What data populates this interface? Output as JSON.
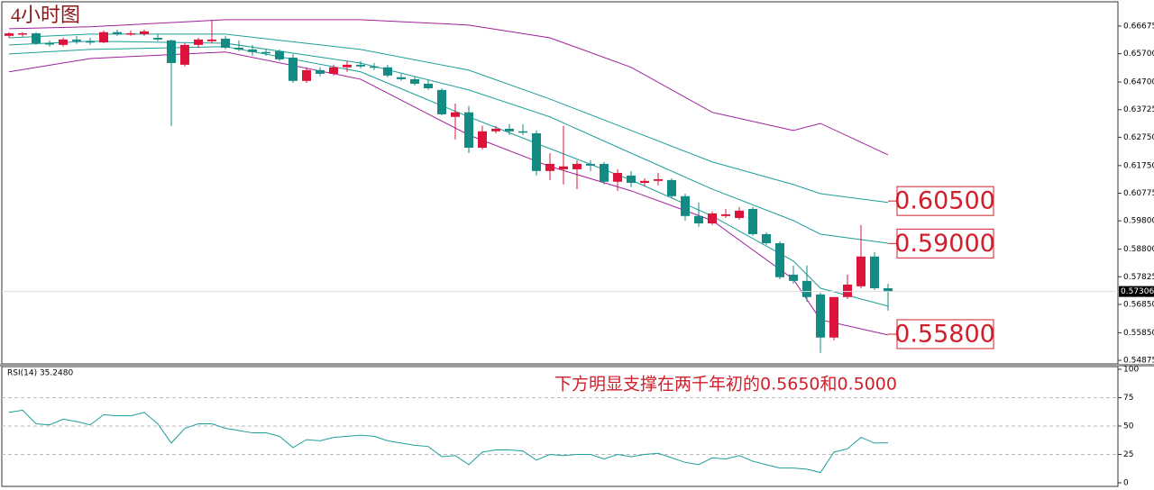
{
  "chart_data": [
    {
      "type": "candlestick",
      "title": "4小时图",
      "up_color": "#dc143c",
      "down_color": "#138a82",
      "ylim": [
        0.5475,
        0.675
      ],
      "yticks": [
        0.66675,
        {
          "value": 0.657,
          "label": "0.65700"
        },
        {
          "value": 0.647,
          "label": "0.64700"
        },
        0.63725,
        {
          "value": 0.6275,
          "label": "0.62750"
        },
        {
          "value": 0.6175,
          "label": "0.61750"
        },
        0.60775,
        {
          "value": 0.598,
          "label": "0.59800"
        },
        {
          "value": 0.588,
          "label": "0.58800"
        },
        0.57825,
        {
          "value": 0.5685,
          "label": "0.56850"
        },
        {
          "value": 0.5585,
          "label": "0.55850"
        },
        0.54875
      ],
      "ohlc": [
        [
          0.6633,
          0.6646,
          0.6626,
          0.6642
        ],
        [
          0.6639,
          0.6646,
          0.663,
          0.6642
        ],
        [
          0.6642,
          0.6646,
          0.6601,
          0.6607
        ],
        [
          0.6607,
          0.6617,
          0.6595,
          0.6604
        ],
        [
          0.6601,
          0.6626,
          0.6595,
          0.662
        ],
        [
          0.662,
          0.6633,
          0.6604,
          0.6614
        ],
        [
          0.6614,
          0.6626,
          0.6601,
          0.661
        ],
        [
          0.661,
          0.6652,
          0.6607,
          0.6646
        ],
        [
          0.6646,
          0.6655,
          0.6633,
          0.6639
        ],
        [
          0.6639,
          0.6652,
          0.6633,
          0.6642
        ],
        [
          0.6639,
          0.6655,
          0.6633,
          0.6649
        ],
        [
          0.6626,
          0.6639,
          0.6614,
          0.662
        ],
        [
          0.6617,
          0.662,
          0.6315,
          0.6537
        ],
        [
          0.6531,
          0.6607,
          0.6525,
          0.6601
        ],
        [
          0.6601,
          0.6626,
          0.6591,
          0.662
        ],
        [
          0.6614,
          0.669,
          0.6607,
          0.662
        ],
        [
          0.6623,
          0.6633,
          0.6585,
          0.6591
        ],
        [
          0.6591,
          0.6617,
          0.6579,
          0.6585
        ],
        [
          0.6585,
          0.6601,
          0.6563,
          0.6576
        ],
        [
          0.6576,
          0.6585,
          0.6563,
          0.6572
        ],
        [
          0.6579,
          0.6585,
          0.6544,
          0.655
        ],
        [
          0.6556,
          0.6569,
          0.6467,
          0.6474
        ],
        [
          0.6474,
          0.6522,
          0.6467,
          0.6512
        ],
        [
          0.6512,
          0.6522,
          0.649,
          0.6499
        ],
        [
          0.6499,
          0.6531,
          0.6493,
          0.6522
        ],
        [
          0.6522,
          0.6544,
          0.6506,
          0.6531
        ],
        [
          0.6531,
          0.6544,
          0.6518,
          0.6525
        ],
        [
          0.6525,
          0.6537,
          0.6512,
          0.6522
        ],
        [
          0.6522,
          0.6531,
          0.6487,
          0.6493
        ],
        [
          0.6487,
          0.6499,
          0.6474,
          0.648
        ],
        [
          0.648,
          0.649,
          0.6458,
          0.6464
        ],
        [
          0.6464,
          0.648,
          0.6442,
          0.6448
        ],
        [
          0.6442,
          0.6448,
          0.6353,
          0.6356
        ],
        [
          0.6347,
          0.6394,
          0.6267,
          0.6363
        ],
        [
          0.6363,
          0.6385,
          0.6219,
          0.6238
        ],
        [
          0.6238,
          0.6315,
          0.6232,
          0.6296
        ],
        [
          0.6296,
          0.6315,
          0.6289,
          0.6305
        ],
        [
          0.6305,
          0.6321,
          0.6283,
          0.6296
        ],
        [
          0.6296,
          0.6321,
          0.6283,
          0.6293
        ],
        [
          0.6289,
          0.6299,
          0.614,
          0.6156
        ],
        [
          0.6156,
          0.6219,
          0.6124,
          0.6181
        ],
        [
          0.6162,
          0.6315,
          0.6108,
          0.6172
        ],
        [
          0.6162,
          0.6194,
          0.6092,
          0.6181
        ],
        [
          0.6181,
          0.6194,
          0.6156,
          0.6175
        ],
        [
          0.6181,
          0.6188,
          0.6108,
          0.6118
        ],
        [
          0.6118,
          0.6162,
          0.6086,
          0.6149
        ],
        [
          0.614,
          0.6156,
          0.6099,
          0.6114
        ],
        [
          0.6114,
          0.613,
          0.6102,
          0.6121
        ],
        [
          0.6121,
          0.6149,
          0.6105,
          0.6127
        ],
        [
          0.6124,
          0.613,
          0.606,
          0.6067
        ],
        [
          0.6067,
          0.6076,
          0.5981,
          0.5997
        ],
        [
          0.5997,
          0.6045,
          0.5959,
          0.5971
        ],
        [
          0.5971,
          0.6013,
          0.5965,
          0.6006
        ],
        [
          0.5997,
          0.6022,
          0.599,
          0.6003
        ],
        [
          0.599,
          0.6029,
          0.5984,
          0.6016
        ],
        [
          0.6022,
          0.6029,
          0.5927,
          0.5933
        ],
        [
          0.5933,
          0.594,
          0.5895,
          0.5901
        ],
        [
          0.5901,
          0.5908,
          0.5774,
          0.5781
        ],
        [
          0.579,
          0.5822,
          0.5758,
          0.5768
        ],
        [
          0.5768,
          0.5822,
          0.5695,
          0.5711
        ],
        [
          0.572,
          0.5727,
          0.5514,
          0.5568
        ],
        [
          0.5568,
          0.5711,
          0.5558,
          0.5711
        ],
        [
          0.5711,
          0.579,
          0.5704,
          0.5755
        ],
        [
          0.5749,
          0.5965,
          0.5742,
          0.5854
        ],
        [
          0.5854,
          0.587,
          0.5736,
          0.5742
        ],
        [
          0.5742,
          0.5758,
          0.5663,
          0.57306
        ]
      ],
      "band_x": [
        0,
        6,
        16,
        26,
        34,
        40,
        46,
        52,
        58,
        60,
        65
      ],
      "bands": [
        {
          "color": "#a0209c",
          "values": [
            0.6658,
            0.6665,
            0.669,
            0.669,
            0.6671,
            0.6626,
            0.6522,
            0.6363,
            0.6299,
            0.6324,
            0.6213
          ]
        },
        {
          "color": "#1e9e9a",
          "values": [
            0.6626,
            0.6639,
            0.6639,
            0.6585,
            0.6512,
            0.641,
            0.6299,
            0.6188,
            0.6108,
            0.6076,
            0.6045
          ]
        },
        {
          "color": "#1e9e9a",
          "values": [
            0.6601,
            0.6614,
            0.6607,
            0.6537,
            0.6442,
            0.6347,
            0.6219,
            0.6092,
            0.5981,
            0.5933,
            0.5901
          ]
        },
        {
          "color": "#1e9e9a",
          "values": [
            0.6569,
            0.6585,
            0.6595,
            0.6506,
            0.6347,
            0.6235,
            0.6124,
            0.5997,
            0.5838,
            0.5742,
            0.5679
          ]
        },
        {
          "color": "#a0209c",
          "values": [
            0.6506,
            0.6553,
            0.6576,
            0.648,
            0.6283,
            0.6172,
            0.6086,
            0.5981,
            0.5774,
            0.5631,
            0.5577
          ]
        }
      ],
      "levels": [
        {
          "value": 0.605,
          "label": "0.60500"
        },
        {
          "value": 0.59,
          "label": "0.59000"
        },
        {
          "value": 0.558,
          "label": "0.55800"
        }
      ],
      "level_color": "#d0202c"
    },
    {
      "type": "line",
      "title": "RSI(14) 35.2480",
      "annotation": "下方明显支撑在两千年初的0.5650和0.5000",
      "color": "#1e9e9a",
      "ylim": [
        0,
        100
      ],
      "yticks": [
        0,
        25,
        50,
        75,
        100
      ],
      "grid": true,
      "values": [
        62,
        64,
        52,
        51,
        56,
        54,
        51,
        60,
        59,
        59,
        62,
        52,
        35,
        48,
        52,
        52,
        48,
        46,
        44,
        44,
        41,
        31,
        38,
        37,
        40,
        41,
        42,
        41,
        37,
        35,
        33,
        32,
        23,
        24,
        16,
        27,
        29,
        29,
        28,
        20,
        25,
        24,
        25,
        25,
        21,
        25,
        23,
        25,
        26,
        22,
        18,
        16,
        22,
        21,
        24,
        19,
        16,
        13,
        13,
        12,
        9,
        27,
        30,
        40,
        35,
        35.248
      ]
    }
  ]
}
